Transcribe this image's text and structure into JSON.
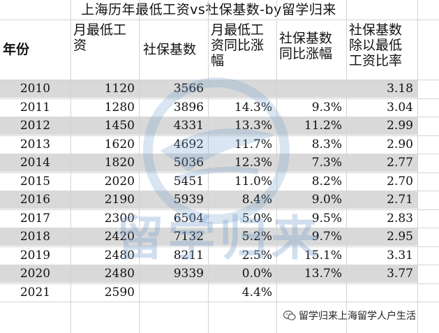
{
  "title": "上海历年最低工资vs社保基数-by留学归来",
  "headers": {
    "year": "年份",
    "min_wage": [
      "月最低工",
      "资"
    ],
    "social_base": "社保基数",
    "min_wage_growth": [
      "月最低工",
      "资同比涨",
      "幅"
    ],
    "social_growth": [
      "社保基数",
      "同比涨幅"
    ],
    "ratio": [
      "社保基数",
      "除以最低",
      "工资比率"
    ]
  },
  "rows": [
    {
      "year": "2010",
      "min_wage": "1120",
      "social_base": "3566",
      "min_wage_growth": "",
      "social_growth": "",
      "ratio": "3.18"
    },
    {
      "year": "2011",
      "min_wage": "1280",
      "social_base": "3896",
      "min_wage_growth": "14.3%",
      "social_growth": "9.3%",
      "ratio": "3.04"
    },
    {
      "year": "2012",
      "min_wage": "1450",
      "social_base": "4331",
      "min_wage_growth": "13.3%",
      "social_growth": "11.2%",
      "ratio": "2.99"
    },
    {
      "year": "2013",
      "min_wage": "1620",
      "social_base": "4692",
      "min_wage_growth": "11.7%",
      "social_growth": "8.3%",
      "ratio": "2.90"
    },
    {
      "year": "2014",
      "min_wage": "1820",
      "social_base": "5036",
      "min_wage_growth": "12.3%",
      "social_growth": "7.3%",
      "ratio": "2.77"
    },
    {
      "year": "2015",
      "min_wage": "2020",
      "social_base": "5451",
      "min_wage_growth": "11.0%",
      "social_growth": "8.2%",
      "ratio": "2.70"
    },
    {
      "year": "2016",
      "min_wage": "2190",
      "social_base": "5939",
      "min_wage_growth": "8.4%",
      "social_growth": "9.0%",
      "ratio": "2.71"
    },
    {
      "year": "2017",
      "min_wage": "2300",
      "social_base": "6504",
      "min_wage_growth": "5.0%",
      "social_growth": "9.5%",
      "ratio": "2.83"
    },
    {
      "year": "2018",
      "min_wage": "2420",
      "social_base": "7132",
      "min_wage_growth": "5.2%",
      "social_growth": "9.7%",
      "ratio": "2.95"
    },
    {
      "year": "2019",
      "min_wage": "2480",
      "social_base": "8211",
      "min_wage_growth": "2.5%",
      "social_growth": "15.1%",
      "ratio": "3.31"
    },
    {
      "year": "2020",
      "min_wage": "2480",
      "social_base": "9339",
      "min_wage_growth": "0.0%",
      "social_growth": "13.7%",
      "ratio": "3.77"
    },
    {
      "year": "2021",
      "min_wage": "2590",
      "social_base": "",
      "min_wage_growth": "4.4%",
      "social_growth": "",
      "ratio": ""
    }
  ],
  "watermark_text": "留学归来",
  "footer_caption": "留学归来上海留学人户生活",
  "colors": {
    "shade": "#d9d9d9",
    "watermark": "#78a0cd",
    "grid": "#d4d4d4"
  }
}
